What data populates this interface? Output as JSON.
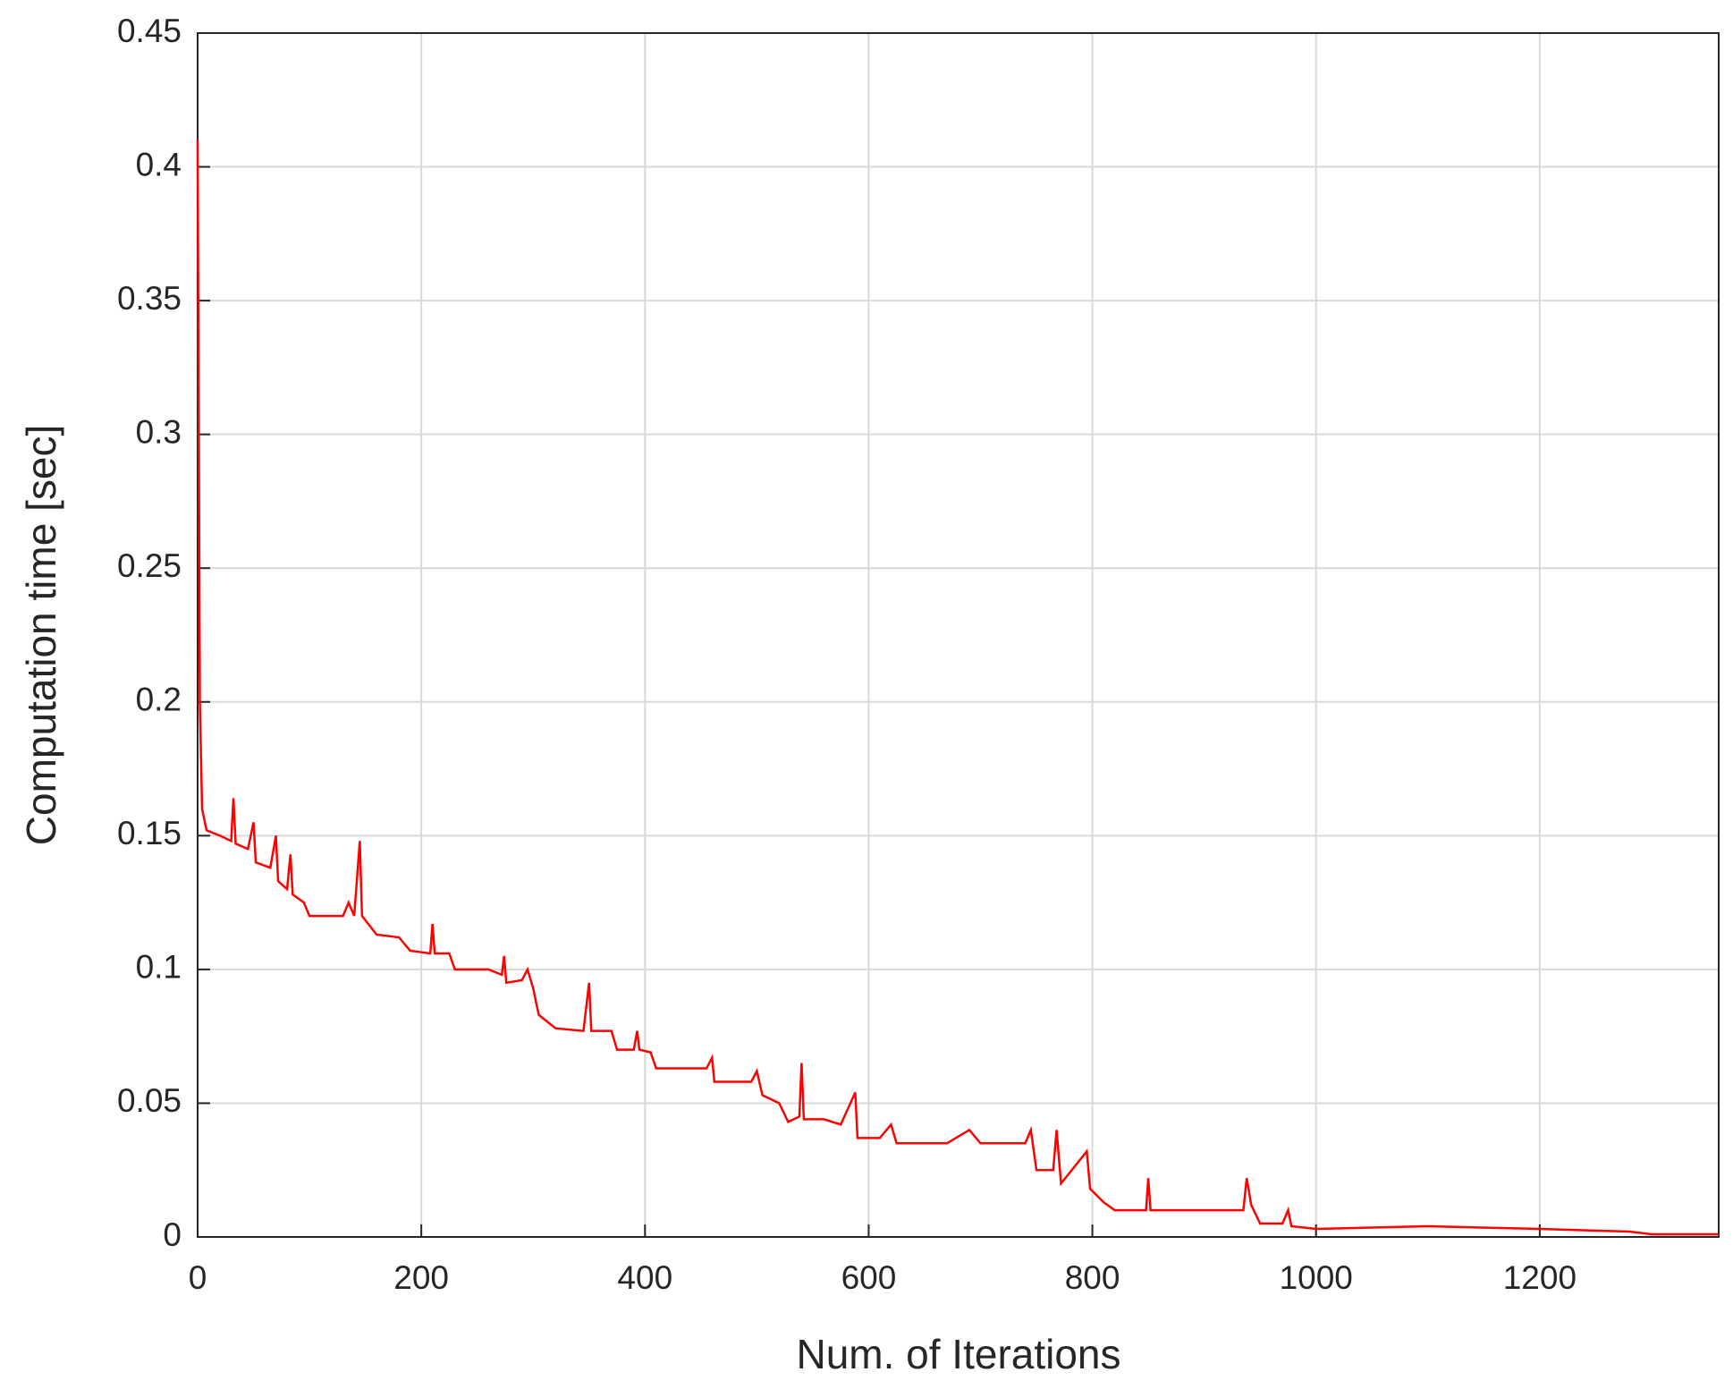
{
  "chart_data": {
    "type": "line",
    "xlabel": "Num. of Iterations",
    "ylabel": "Computation time [sec]",
    "x": [
      0,
      2,
      4,
      8,
      20,
      30,
      32,
      34,
      45,
      50,
      52,
      65,
      70,
      72,
      80,
      83,
      85,
      95,
      100,
      130,
      135,
      140,
      145,
      147,
      160,
      180,
      190,
      208,
      210,
      212,
      225,
      230,
      260,
      272,
      274,
      276,
      290,
      295,
      300,
      305,
      320,
      345,
      350,
      352,
      370,
      375,
      390,
      393,
      395,
      405,
      410,
      455,
      460,
      462,
      495,
      500,
      505,
      520,
      528,
      538,
      540,
      542,
      560,
      575,
      588,
      590,
      610,
      620,
      625,
      670,
      690,
      700,
      740,
      745,
      750,
      765,
      768,
      772,
      795,
      798,
      810,
      820,
      848,
      850,
      852,
      935,
      938,
      942,
      950,
      970,
      975,
      978,
      1000,
      1100,
      1200,
      1280,
      1300,
      1360
    ],
    "values": [
      0.41,
      0.2,
      0.16,
      0.152,
      0.15,
      0.148,
      0.164,
      0.147,
      0.145,
      0.155,
      0.14,
      0.138,
      0.15,
      0.133,
      0.13,
      0.143,
      0.128,
      0.125,
      0.12,
      0.12,
      0.125,
      0.12,
      0.148,
      0.12,
      0.113,
      0.112,
      0.107,
      0.106,
      0.117,
      0.106,
      0.106,
      0.1,
      0.1,
      0.098,
      0.105,
      0.095,
      0.096,
      0.1,
      0.093,
      0.083,
      0.078,
      0.077,
      0.095,
      0.077,
      0.077,
      0.07,
      0.07,
      0.077,
      0.07,
      0.069,
      0.063,
      0.063,
      0.067,
      0.058,
      0.058,
      0.062,
      0.053,
      0.05,
      0.043,
      0.045,
      0.065,
      0.044,
      0.044,
      0.042,
      0.054,
      0.037,
      0.037,
      0.042,
      0.035,
      0.035,
      0.04,
      0.035,
      0.035,
      0.04,
      0.025,
      0.025,
      0.04,
      0.02,
      0.032,
      0.018,
      0.013,
      0.01,
      0.01,
      0.022,
      0.01,
      0.01,
      0.022,
      0.012,
      0.005,
      0.005,
      0.01,
      0.004,
      0.003,
      0.004,
      0.003,
      0.002,
      0.001,
      0.001
    ],
    "color": "#ff0000",
    "xlim": [
      0,
      1360
    ],
    "xticks": [
      0,
      200,
      400,
      600,
      800,
      1000,
      1200
    ],
    "ylim": [
      0,
      0.45
    ],
    "yticks": [
      0,
      0.05,
      0.1,
      0.15,
      0.2,
      0.25,
      0.3,
      0.35,
      0.4,
      0.45
    ],
    "grid": true
  }
}
